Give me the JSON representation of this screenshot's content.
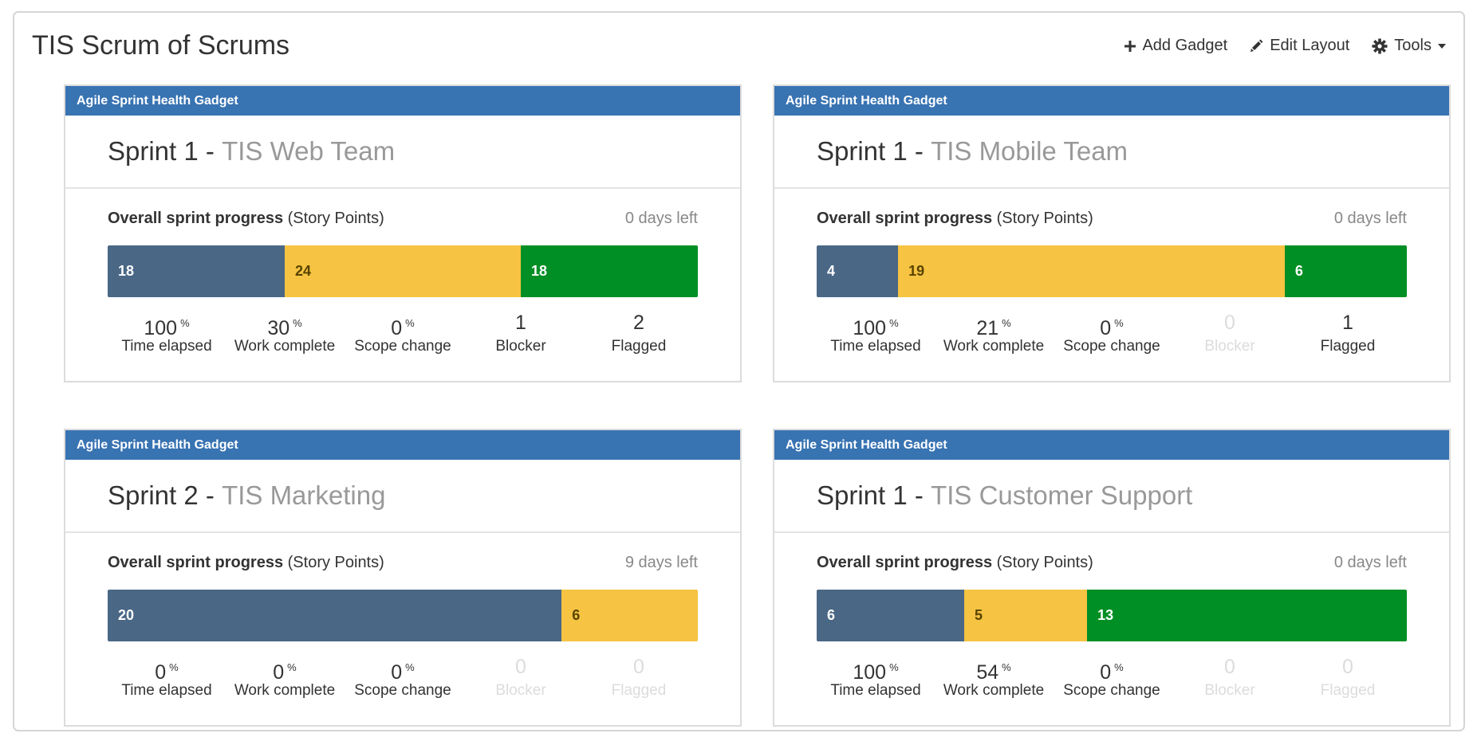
{
  "page": {
    "title": "TIS Scrum of Scrums"
  },
  "toolbar": {
    "add_gadget": "Add Gadget",
    "edit_layout": "Edit Layout",
    "tools": "Tools"
  },
  "colors": {
    "header_blue": "#3873b2",
    "todo": "#4a6785",
    "in_progress": "#f6c342",
    "done": "#008f25"
  },
  "gadgets": [
    {
      "header": "Agile Sprint Health Gadget",
      "sprint": "Sprint 1",
      "separator": " - ",
      "team": "TIS Web Team",
      "progress_title": "Overall sprint progress",
      "progress_sub": " (Story Points)",
      "days_left": "0 days left",
      "segments": [
        {
          "kind": "todo",
          "value": 18
        },
        {
          "kind": "in_progress",
          "value": 24
        },
        {
          "kind": "done",
          "value": 18
        }
      ],
      "stats": [
        {
          "value": "100",
          "unit": "%",
          "label": "Time elapsed",
          "dim": false
        },
        {
          "value": "30",
          "unit": "%",
          "label": "Work complete",
          "dim": false
        },
        {
          "value": "0",
          "unit": "%",
          "label": "Scope change",
          "dim": false
        },
        {
          "value": "1",
          "unit": "",
          "label": "Blocker",
          "dim": false
        },
        {
          "value": "2",
          "unit": "",
          "label": "Flagged",
          "dim": false
        }
      ]
    },
    {
      "header": "Agile Sprint Health Gadget",
      "sprint": "Sprint 1",
      "separator": " - ",
      "team": "TIS Mobile Team",
      "progress_title": "Overall sprint progress",
      "progress_sub": " (Story Points)",
      "days_left": "0 days left",
      "segments": [
        {
          "kind": "todo",
          "value": 4
        },
        {
          "kind": "in_progress",
          "value": 19
        },
        {
          "kind": "done",
          "value": 6
        }
      ],
      "stats": [
        {
          "value": "100",
          "unit": "%",
          "label": "Time elapsed",
          "dim": false
        },
        {
          "value": "21",
          "unit": "%",
          "label": "Work complete",
          "dim": false
        },
        {
          "value": "0",
          "unit": "%",
          "label": "Scope change",
          "dim": false
        },
        {
          "value": "0",
          "unit": "",
          "label": "Blocker",
          "dim": true
        },
        {
          "value": "1",
          "unit": "",
          "label": "Flagged",
          "dim": false
        }
      ]
    },
    {
      "header": "Agile Sprint Health Gadget",
      "sprint": "Sprint 2",
      "separator": " - ",
      "team": "TIS Marketing",
      "progress_title": "Overall sprint progress",
      "progress_sub": " (Story Points)",
      "days_left": "9 days left",
      "segments": [
        {
          "kind": "todo",
          "value": 20
        },
        {
          "kind": "in_progress",
          "value": 6
        }
      ],
      "stats": [
        {
          "value": "0",
          "unit": "%",
          "label": "Time elapsed",
          "dim": false
        },
        {
          "value": "0",
          "unit": "%",
          "label": "Work complete",
          "dim": false
        },
        {
          "value": "0",
          "unit": "%",
          "label": "Scope change",
          "dim": false
        },
        {
          "value": "0",
          "unit": "",
          "label": "Blocker",
          "dim": true
        },
        {
          "value": "0",
          "unit": "",
          "label": "Flagged",
          "dim": true
        }
      ]
    },
    {
      "header": "Agile Sprint Health Gadget",
      "sprint": "Sprint 1",
      "separator": " - ",
      "team": "TIS Customer Support",
      "progress_title": "Overall sprint progress",
      "progress_sub": " (Story Points)",
      "days_left": "0 days left",
      "segments": [
        {
          "kind": "todo",
          "value": 6
        },
        {
          "kind": "in_progress",
          "value": 5
        },
        {
          "kind": "done",
          "value": 13
        }
      ],
      "stats": [
        {
          "value": "100",
          "unit": "%",
          "label": "Time elapsed",
          "dim": false
        },
        {
          "value": "54",
          "unit": "%",
          "label": "Work complete",
          "dim": false
        },
        {
          "value": "0",
          "unit": "%",
          "label": "Scope change",
          "dim": false
        },
        {
          "value": "0",
          "unit": "",
          "label": "Blocker",
          "dim": true
        },
        {
          "value": "0",
          "unit": "",
          "label": "Flagged",
          "dim": true
        }
      ]
    }
  ]
}
